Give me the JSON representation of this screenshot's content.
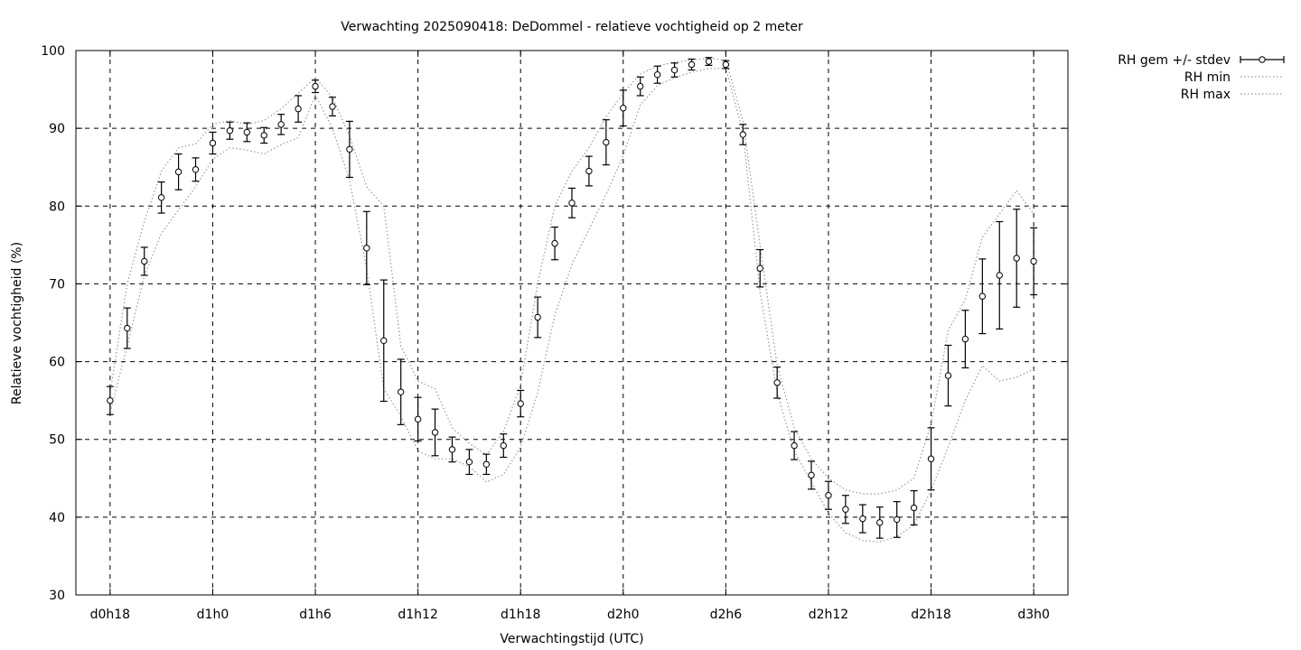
{
  "chart_data": {
    "type": "scatter",
    "title": "Verwachting 2025090418: DeDommel - relatieve vochtigheid op 2 meter",
    "xlabel": "Verwachtingstijd (UTC)",
    "ylabel": "Relatieve vochtigheid (%)",
    "xlim": [
      -2,
      56
    ],
    "ylim": [
      30,
      100
    ],
    "x_ticks": [
      {
        "x": 0,
        "label": "d0h18"
      },
      {
        "x": 6,
        "label": "d1h0"
      },
      {
        "x": 12,
        "label": "d1h6"
      },
      {
        "x": 18,
        "label": "d1h12"
      },
      {
        "x": 24,
        "label": "d1h18"
      },
      {
        "x": 30,
        "label": "d2h0"
      },
      {
        "x": 36,
        "label": "d2h6"
      },
      {
        "x": 42,
        "label": "d2h12"
      },
      {
        "x": 48,
        "label": "d2h18"
      },
      {
        "x": 54,
        "label": "d3h0"
      }
    ],
    "y_ticks": [
      30,
      40,
      50,
      60,
      70,
      80,
      90,
      100
    ],
    "grid": true,
    "legend_position": "outside-top-right",
    "series": [
      {
        "name": "RH gem +/- stdev",
        "style": "errorbars",
        "x": [
          0,
          1,
          2,
          3,
          4,
          5,
          6,
          7,
          8,
          9,
          10,
          11,
          12,
          13,
          14,
          15,
          16,
          17,
          18,
          19,
          20,
          21,
          22,
          23,
          24,
          25,
          26,
          27,
          28,
          29,
          30,
          31,
          32,
          33,
          34,
          35,
          36,
          37,
          38,
          39,
          40,
          41,
          42,
          43,
          44,
          45,
          46,
          47,
          48,
          49,
          50,
          51,
          52,
          53,
          54
        ],
        "mean": [
          55.0,
          64.3,
          72.9,
          81.1,
          84.4,
          84.7,
          88.1,
          89.7,
          89.5,
          89.1,
          90.5,
          92.5,
          95.4,
          92.8,
          87.3,
          74.6,
          62.7,
          56.1,
          52.6,
          50.9,
          48.7,
          47.1,
          46.8,
          49.2,
          54.6,
          65.7,
          75.2,
          80.4,
          84.5,
          88.2,
          92.6,
          95.4,
          96.9,
          97.5,
          98.2,
          98.6,
          98.2,
          89.2,
          72.0,
          57.3,
          49.2,
          45.4,
          42.8,
          41.0,
          39.8,
          39.3,
          39.7,
          41.2,
          47.5,
          58.2,
          62.9,
          68.4,
          71.1,
          73.3,
          72.9
        ],
        "stdev": [
          1.8,
          2.6,
          1.8,
          2.0,
          2.3,
          1.5,
          1.4,
          1.1,
          1.2,
          1.0,
          1.3,
          1.7,
          0.8,
          1.2,
          3.6,
          4.7,
          7.8,
          4.2,
          2.8,
          3.0,
          1.6,
          1.6,
          1.3,
          1.5,
          1.7,
          2.6,
          2.1,
          1.9,
          1.9,
          2.9,
          2.3,
          1.2,
          1.1,
          0.9,
          0.7,
          0.5,
          0.5,
          1.3,
          2.4,
          2.0,
          1.8,
          1.8,
          1.8,
          1.8,
          1.8,
          2.0,
          2.3,
          2.2,
          4.0,
          3.9,
          3.7,
          4.8,
          6.9,
          6.3,
          4.3
        ]
      },
      {
        "name": "RH min",
        "style": "dotted",
        "x": [
          0,
          1,
          2,
          3,
          4,
          5,
          6,
          7,
          8,
          9,
          10,
          11,
          12,
          13,
          14,
          15,
          16,
          17,
          18,
          19,
          20,
          21,
          22,
          23,
          24,
          25,
          26,
          27,
          28,
          29,
          30,
          31,
          32,
          33,
          34,
          35,
          36,
          37,
          38,
          39,
          40,
          41,
          42,
          43,
          44,
          45,
          46,
          47,
          48,
          49,
          50,
          51,
          52,
          53,
          54
        ],
        "values": [
          53.5,
          62.0,
          71.0,
          76.5,
          79.5,
          82.5,
          86.0,
          87.5,
          87.2,
          86.7,
          87.9,
          88.8,
          94.3,
          90.0,
          83.3,
          72.0,
          56.5,
          53.0,
          48.5,
          47.5,
          47.5,
          46.5,
          44.5,
          45.5,
          49.0,
          56.0,
          66.0,
          72.5,
          77.0,
          81.5,
          86.5,
          93.0,
          95.5,
          96.5,
          97.2,
          97.7,
          97.7,
          89.5,
          69.0,
          56.0,
          48.5,
          44.5,
          40.5,
          38.0,
          37.0,
          36.8,
          37.5,
          39.0,
          43.5,
          49.0,
          55.0,
          59.5,
          57.5,
          58.0,
          59.0
        ]
      },
      {
        "name": "RH max",
        "style": "dotted",
        "x": [
          0,
          1,
          2,
          3,
          4,
          5,
          6,
          7,
          8,
          9,
          10,
          11,
          12,
          13,
          14,
          15,
          16,
          17,
          18,
          19,
          20,
          21,
          22,
          23,
          24,
          25,
          26,
          27,
          28,
          29,
          30,
          31,
          32,
          33,
          34,
          35,
          36,
          37,
          38,
          39,
          40,
          41,
          42,
          43,
          44,
          45,
          46,
          47,
          48,
          49,
          50,
          51,
          52,
          53,
          54
        ],
        "values": [
          56.0,
          70.0,
          78.0,
          84.5,
          87.5,
          88.0,
          90.5,
          91.0,
          90.5,
          91.0,
          92.5,
          94.5,
          96.5,
          94.0,
          89.0,
          82.5,
          80.0,
          62.0,
          57.5,
          56.5,
          51.5,
          49.5,
          48.0,
          51.0,
          57.0,
          70.0,
          80.0,
          84.5,
          87.5,
          91.5,
          94.5,
          97.0,
          98.0,
          98.5,
          98.8,
          99.0,
          98.8,
          91.0,
          75.0,
          59.5,
          51.5,
          47.5,
          45.0,
          43.5,
          43.0,
          43.0,
          43.5,
          45.0,
          52.0,
          64.0,
          68.0,
          76.0,
          79.0,
          82.0,
          79.0
        ]
      }
    ]
  }
}
